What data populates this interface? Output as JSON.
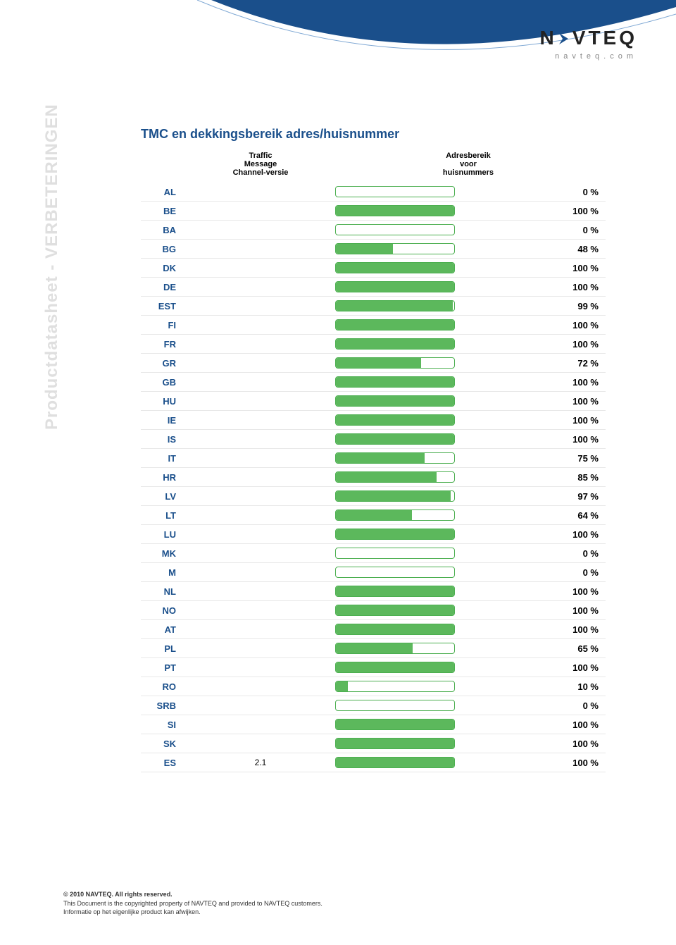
{
  "logo": {
    "text_pre": "N",
    "text_post": "VTEQ",
    "sub": "navteq.com"
  },
  "side_label": "Productdatasheet - VERBETERINGEN",
  "title": "TMC en dekkingsbereik adres/huisnummer",
  "headers": {
    "tmc": "Traffic\nMessage\nChannel-versie",
    "coverage": "Adresbereik\nvoor\nhuisnummers"
  },
  "colors": {
    "brand_blue": "#1a4f8b",
    "bar_fill": "#5cb85c",
    "bar_border": "#4caf50",
    "row_border": "#e8e8e8",
    "side_label": "#c0c0c0"
  },
  "rows": [
    {
      "code": "AL",
      "tmc": "",
      "pct": 0
    },
    {
      "code": "BE",
      "tmc": "",
      "pct": 100
    },
    {
      "code": "BA",
      "tmc": "",
      "pct": 0
    },
    {
      "code": "BG",
      "tmc": "",
      "pct": 48
    },
    {
      "code": "DK",
      "tmc": "",
      "pct": 100
    },
    {
      "code": "DE",
      "tmc": "",
      "pct": 100
    },
    {
      "code": "EST",
      "tmc": "",
      "pct": 99
    },
    {
      "code": "FI",
      "tmc": "",
      "pct": 100
    },
    {
      "code": "FR",
      "tmc": "",
      "pct": 100
    },
    {
      "code": "GR",
      "tmc": "",
      "pct": 72
    },
    {
      "code": "GB",
      "tmc": "",
      "pct": 100
    },
    {
      "code": "HU",
      "tmc": "",
      "pct": 100
    },
    {
      "code": "IE",
      "tmc": "",
      "pct": 100
    },
    {
      "code": "IS",
      "tmc": "",
      "pct": 100
    },
    {
      "code": "IT",
      "tmc": "",
      "pct": 75
    },
    {
      "code": "HR",
      "tmc": "",
      "pct": 85
    },
    {
      "code": "LV",
      "tmc": "",
      "pct": 97
    },
    {
      "code": "LT",
      "tmc": "",
      "pct": 64
    },
    {
      "code": "LU",
      "tmc": "",
      "pct": 100
    },
    {
      "code": "MK",
      "tmc": "",
      "pct": 0
    },
    {
      "code": "M",
      "tmc": "",
      "pct": 0
    },
    {
      "code": "NL",
      "tmc": "",
      "pct": 100
    },
    {
      "code": "NO",
      "tmc": "",
      "pct": 100
    },
    {
      "code": "AT",
      "tmc": "",
      "pct": 100
    },
    {
      "code": "PL",
      "tmc": "",
      "pct": 65
    },
    {
      "code": "PT",
      "tmc": "",
      "pct": 100
    },
    {
      "code": "RO",
      "tmc": "",
      "pct": 10
    },
    {
      "code": "SRB",
      "tmc": "",
      "pct": 0
    },
    {
      "code": "SI",
      "tmc": "",
      "pct": 100
    },
    {
      "code": "SK",
      "tmc": "",
      "pct": 100
    },
    {
      "code": "ES",
      "tmc": "2.1",
      "pct": 100
    }
  ],
  "footer": {
    "line1": "© 2010 NAVTEQ. All rights reserved.",
    "line2": "This Document is the copyrighted property of NAVTEQ and provided to NAVTEQ customers.",
    "line3": "Informatie op het eigenlijke product kan afwijken."
  }
}
